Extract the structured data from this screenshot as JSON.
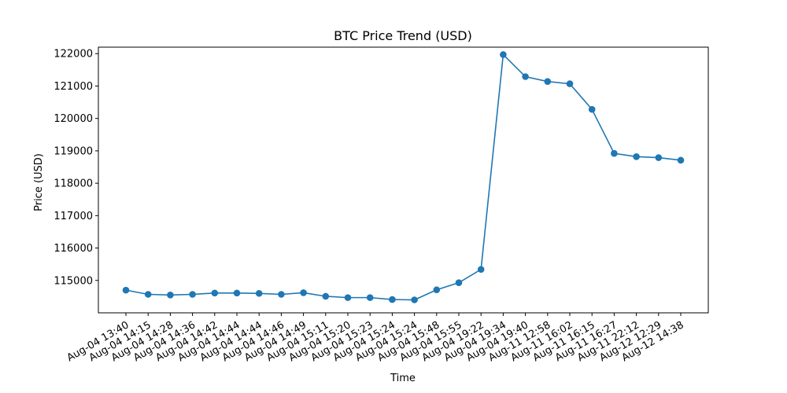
{
  "chart_data": {
    "type": "line",
    "title": "BTC Price Trend (USD)",
    "xlabel": "Time",
    "ylabel": "Price (USD)",
    "categories": [
      "Aug-04 13:40",
      "Aug-04 14:15",
      "Aug-04 14:28",
      "Aug-04 14:36",
      "Aug-04 14:42",
      "Aug-04 14:44",
      "Aug-04 14:44",
      "Aug-04 14:46",
      "Aug-04 14:49",
      "Aug-04 15:11",
      "Aug-04 15:20",
      "Aug-04 15:23",
      "Aug-04 15:24",
      "Aug-04 15:24",
      "Aug-04 15:48",
      "Aug-04 15:55",
      "Aug-04 19:22",
      "Aug-04 19:34",
      "Aug-04 19:40",
      "Aug-11 12:58",
      "Aug-11 16:02",
      "Aug-11 16:15",
      "Aug-11 16:27",
      "Aug-11 22:12",
      "Aug-12 12:29",
      "Aug-12 14:38"
    ],
    "series": [
      {
        "values": [
          114700,
          114570,
          114550,
          114570,
          114610,
          114610,
          114600,
          114570,
          114620,
          114510,
          114470,
          114470,
          114410,
          114400,
          114710,
          114930,
          115340,
          121970,
          121290,
          121140,
          121070,
          120280,
          118920,
          118820,
          118790,
          118710
        ],
        "color": "#1f77b4"
      }
    ],
    "yticks": [
      "115000",
      "116000",
      "117000",
      "118000",
      "119000",
      "120000",
      "121000",
      "122000"
    ],
    "ylim": [
      114000,
      122200
    ],
    "grid": false,
    "legend": "none"
  }
}
